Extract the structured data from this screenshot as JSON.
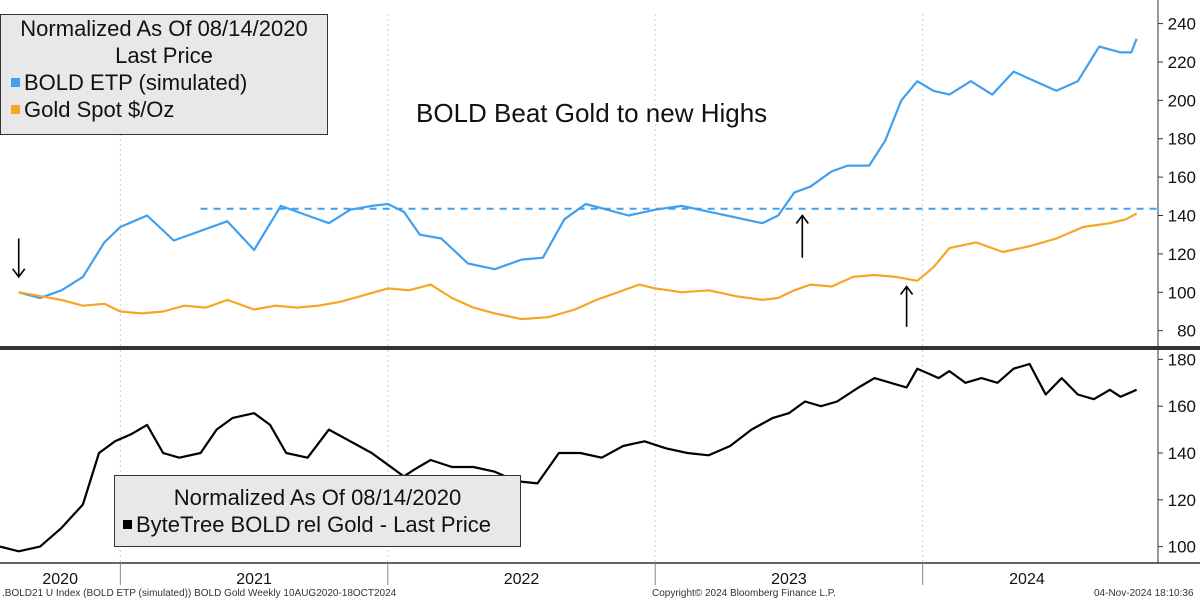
{
  "chart_data": [
    {
      "type": "line",
      "legend_title": [
        "Normalized As Of 08/14/2020",
        "Last Price"
      ],
      "annotation": "BOLD Beat Gold to new Highs",
      "y_ticks": [
        80,
        100,
        120,
        140,
        160,
        180,
        200,
        220,
        240
      ],
      "ylim": [
        72,
        245
      ],
      "xlim": [
        2020.55,
        2024.88
      ],
      "reference_line": {
        "y": 143.5,
        "from_x": 2021.3,
        "style": "dashed",
        "color": "#3f9ff0"
      },
      "arrows_up": [
        {
          "x": 2023.55,
          "y_from": 118,
          "y_to": 140
        },
        {
          "x": 2023.94,
          "y_from": 82,
          "y_to": 103
        }
      ],
      "arrows_down": [
        {
          "x": 2020.62,
          "y_from": 128,
          "y_to": 108
        }
      ],
      "series": [
        {
          "name": "BOLD ETP (simulated)",
          "color": "#3f9ff0",
          "x": [
            2020.62,
            2020.7,
            2020.78,
            2020.86,
            2020.94,
            2021.0,
            2021.1,
            2021.2,
            2021.3,
            2021.4,
            2021.5,
            2021.6,
            2021.7,
            2021.78,
            2021.86,
            2021.94,
            2022.0,
            2022.06,
            2022.12,
            2022.2,
            2022.3,
            2022.4,
            2022.5,
            2022.58,
            2022.66,
            2022.74,
            2022.82,
            2022.9,
            2023.0,
            2023.1,
            2023.2,
            2023.3,
            2023.4,
            2023.46,
            2023.52,
            2023.58,
            2023.66,
            2023.72,
            2023.8,
            2023.86,
            2023.92,
            2023.98,
            2024.04,
            2024.1,
            2024.18,
            2024.26,
            2024.34,
            2024.42,
            2024.5,
            2024.58,
            2024.66,
            2024.74,
            2024.78,
            2024.8
          ],
          "values": [
            100,
            97,
            101,
            108,
            126,
            134,
            140,
            127,
            132,
            137,
            122,
            145,
            140,
            136,
            143,
            145,
            146,
            142,
            130,
            128,
            115,
            112,
            117,
            118,
            138,
            146,
            143,
            140,
            143,
            145,
            142,
            139,
            136,
            140,
            152,
            155,
            163,
            166,
            166,
            179,
            200,
            210,
            205,
            203,
            210,
            203,
            215,
            210,
            205,
            210,
            228,
            225,
            225,
            232
          ]
        },
        {
          "name": "Gold Spot $/Oz",
          "color": "#f5a623",
          "x": [
            2020.62,
            2020.7,
            2020.78,
            2020.86,
            2020.94,
            2021.0,
            2021.08,
            2021.16,
            2021.24,
            2021.32,
            2021.4,
            2021.5,
            2021.58,
            2021.66,
            2021.74,
            2021.82,
            2021.9,
            2022.0,
            2022.08,
            2022.16,
            2022.24,
            2022.32,
            2022.4,
            2022.5,
            2022.6,
            2022.7,
            2022.78,
            2022.86,
            2022.94,
            2023.0,
            2023.1,
            2023.2,
            2023.3,
            2023.4,
            2023.46,
            2023.52,
            2023.58,
            2023.66,
            2023.74,
            2023.82,
            2023.9,
            2023.98,
            2024.04,
            2024.1,
            2024.2,
            2024.3,
            2024.4,
            2024.5,
            2024.6,
            2024.7,
            2024.76,
            2024.8
          ],
          "values": [
            100,
            98,
            96,
            93,
            94,
            90,
            89,
            90,
            93,
            92,
            96,
            91,
            93,
            92,
            93,
            95,
            98,
            102,
            101,
            104,
            97,
            92,
            89,
            86,
            87,
            91,
            96,
            100,
            104,
            102,
            100,
            101,
            98,
            96,
            97,
            101,
            104,
            103,
            108,
            109,
            108,
            106,
            113,
            123,
            126,
            121,
            124,
            128,
            134,
            136,
            138,
            141
          ]
        }
      ]
    },
    {
      "type": "line",
      "legend_title": [
        "Normalized As Of 08/14/2020"
      ],
      "series": [
        {
          "name": "ByteTree BOLD rel Gold - Last Price",
          "color": "#000000",
          "x": [
            2020.55,
            2020.62,
            2020.7,
            2020.78,
            2020.86,
            2020.92,
            2020.98,
            2021.04,
            2021.1,
            2021.16,
            2021.22,
            2021.3,
            2021.36,
            2021.42,
            2021.5,
            2021.56,
            2021.62,
            2021.7,
            2021.78,
            2021.86,
            2021.94,
            2022.0,
            2022.06,
            2022.1,
            2022.16,
            2022.24,
            2022.32,
            2022.4,
            2022.48,
            2022.56,
            2022.64,
            2022.72,
            2022.8,
            2022.88,
            2022.96,
            2023.04,
            2023.12,
            2023.2,
            2023.28,
            2023.36,
            2023.44,
            2023.5,
            2023.56,
            2023.62,
            2023.68,
            2023.76,
            2023.82,
            2023.88,
            2023.94,
            2023.98,
            2024.02,
            2024.06,
            2024.1,
            2024.16,
            2024.22,
            2024.28,
            2024.34,
            2024.4,
            2024.46,
            2024.52,
            2024.58,
            2024.64,
            2024.7,
            2024.74,
            2024.78,
            2024.8
          ],
          "values": [
            100,
            98,
            100,
            108,
            118,
            140,
            145,
            148,
            152,
            140,
            138,
            140,
            150,
            155,
            157,
            152,
            140,
            138,
            150,
            145,
            140,
            135,
            130,
            133,
            137,
            134,
            134,
            132,
            128,
            127,
            140,
            140,
            138,
            143,
            145,
            142,
            140,
            139,
            143,
            150,
            155,
            157,
            162,
            160,
            162,
            168,
            172,
            170,
            168,
            176,
            174,
            172,
            175,
            170,
            172,
            170,
            176,
            178,
            165,
            172,
            165,
            163,
            167,
            164,
            166,
            167
          ]
        }
      ],
      "y_ticks": [
        100,
        120,
        140,
        160,
        180
      ],
      "ylim": [
        93,
        184
      ],
      "xlim": [
        2020.55,
        2024.88
      ],
      "x_ticks": [
        "2020",
        "2021",
        "2022",
        "2023",
        "2024"
      ]
    }
  ],
  "footer": {
    "left": ".BOLD21 U Index (BOLD ETP (simulated)) BOLD Gold  Weekly 10AUG2020-18OCT2024",
    "center": "Copyright© 2024 Bloomberg Finance L.P.",
    "right": "04-Nov-2024 18:10:36"
  }
}
